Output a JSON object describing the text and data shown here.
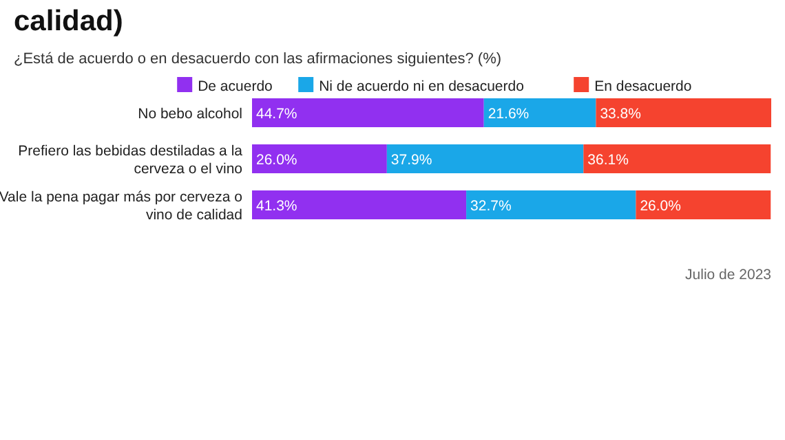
{
  "chart_data": {
    "type": "bar",
    "orientation": "horizontal",
    "stacked": true,
    "title": "calidad)",
    "subtitle": "¿Está de acuerdo o en desacuerdo con las afirmaciones siguientes? (%)",
    "categories": [
      "No bebo alcohol",
      "Prefiero las bebidas destiladas a la cerveza o el vino",
      "Vale la pena pagar más por cerveza o vino de calidad"
    ],
    "series": [
      {
        "name": "De acuerdo",
        "color": "#9130f0",
        "values": [
          44.7,
          26.0,
          41.3
        ],
        "value_labels": [
          "44.7%",
          "26.0%",
          "41.3%"
        ]
      },
      {
        "name": "Ni de acuerdo ni en desacuerdo",
        "color": "#1aa7e8",
        "values": [
          21.6,
          37.9,
          32.7
        ],
        "value_labels": [
          "21.6%",
          "37.9%",
          "32.7%"
        ]
      },
      {
        "name": "En desacuerdo",
        "color": "#f5432f",
        "values": [
          33.8,
          36.1,
          26.0
        ],
        "value_labels": [
          "33.8%",
          "36.1%",
          "26.0%"
        ]
      }
    ],
    "legend": "top",
    "annotations": [
      "Julio de 2023"
    ]
  }
}
